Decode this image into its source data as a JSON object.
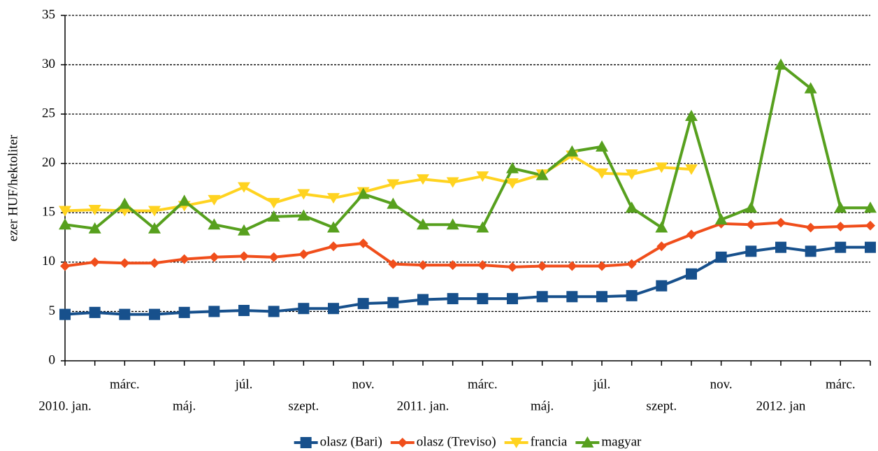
{
  "chart_data": {
    "type": "line",
    "ylabel": "ezer HUF/hektoliter",
    "categories": [
      "2010. jan.",
      null,
      "márc.",
      null,
      "máj.",
      null,
      "júl.",
      null,
      "szept.",
      null,
      "nov.",
      null,
      "2011. jan.",
      null,
      "márc.",
      null,
      "máj.",
      null,
      "júl.",
      null,
      "szept.",
      null,
      "nov.",
      null,
      "2012. jan",
      null,
      "márc.",
      null
    ],
    "series": [
      {
        "name": "olasz (Bari)",
        "color": "#17508c",
        "marker": "square",
        "values": [
          4.7,
          4.9,
          4.7,
          4.7,
          4.9,
          5.0,
          5.1,
          5.0,
          5.3,
          5.3,
          5.8,
          5.9,
          6.2,
          6.3,
          6.3,
          6.3,
          6.5,
          6.5,
          6.5,
          6.6,
          7.6,
          8.8,
          10.5,
          11.1,
          11.5,
          11.1,
          11.5,
          11.5
        ]
      },
      {
        "name": "olasz (Treviso)",
        "color": "#f04e1b",
        "marker": "diamond",
        "values": [
          9.6,
          10.0,
          9.9,
          9.9,
          10.3,
          10.5,
          10.6,
          10.5,
          10.8,
          11.6,
          11.9,
          9.8,
          9.7,
          9.7,
          9.7,
          9.5,
          9.6,
          9.6,
          9.6,
          9.8,
          11.6,
          12.8,
          13.9,
          13.8,
          14.0,
          13.5,
          13.6,
          13.7
        ]
      },
      {
        "name": "francia",
        "color": "#ffd320",
        "marker": "triangle-down",
        "values": [
          15.2,
          15.3,
          15.2,
          15.2,
          15.7,
          16.3,
          17.6,
          16.0,
          16.9,
          16.5,
          17.1,
          17.9,
          18.4,
          18.1,
          18.7,
          18.0,
          18.9,
          20.8,
          19.0,
          18.9,
          19.6,
          19.4,
          null,
          null,
          null,
          null,
          null,
          null
        ]
      },
      {
        "name": "magyar",
        "color": "#57a01e",
        "marker": "triangle-up",
        "values": [
          13.8,
          13.4,
          15.9,
          13.4,
          16.2,
          13.8,
          13.2,
          14.6,
          14.7,
          13.5,
          16.9,
          15.9,
          13.8,
          13.8,
          13.5,
          19.5,
          18.8,
          21.2,
          21.7,
          15.5,
          13.5,
          24.8,
          14.3,
          15.5,
          30.0,
          27.6,
          15.5,
          15.5
        ]
      }
    ],
    "ylim": [
      0,
      35
    ],
    "yticks": [
      0,
      5,
      10,
      15,
      20,
      25,
      30,
      35
    ],
    "grid": true,
    "legend": "bottom"
  }
}
